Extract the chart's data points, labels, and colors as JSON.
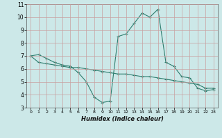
{
  "xlabel": "Humidex (Indice chaleur)",
  "x_values": [
    0,
    1,
    2,
    3,
    4,
    5,
    6,
    7,
    8,
    9,
    10,
    11,
    12,
    13,
    14,
    15,
    16,
    17,
    18,
    19,
    20,
    21,
    22,
    23
  ],
  "line1": [
    7.0,
    7.1,
    6.8,
    6.5,
    6.3,
    6.2,
    5.7,
    5.0,
    3.8,
    3.4,
    3.5,
    8.5,
    8.7,
    9.5,
    10.3,
    10.0,
    10.6,
    6.5,
    6.2,
    5.4,
    5.3,
    4.5,
    4.3,
    4.4
  ],
  "line2": [
    7.0,
    6.5,
    6.4,
    6.3,
    6.2,
    6.1,
    6.1,
    6.0,
    5.9,
    5.8,
    5.7,
    5.6,
    5.6,
    5.5,
    5.4,
    5.4,
    5.3,
    5.2,
    5.1,
    5.0,
    4.9,
    4.8,
    4.5,
    4.5
  ],
  "line_color": "#2d7d6e",
  "bg_color": "#cce8e8",
  "grid_color": "#b0b8b8",
  "ylim": [
    3,
    11
  ],
  "xlim": [
    -0.5,
    23.5
  ],
  "yticks": [
    3,
    4,
    5,
    6,
    7,
    8,
    9,
    10,
    11
  ],
  "xticks": [
    0,
    1,
    2,
    3,
    4,
    5,
    6,
    7,
    8,
    9,
    10,
    11,
    12,
    13,
    14,
    15,
    16,
    17,
    18,
    19,
    20,
    21,
    22,
    23
  ]
}
